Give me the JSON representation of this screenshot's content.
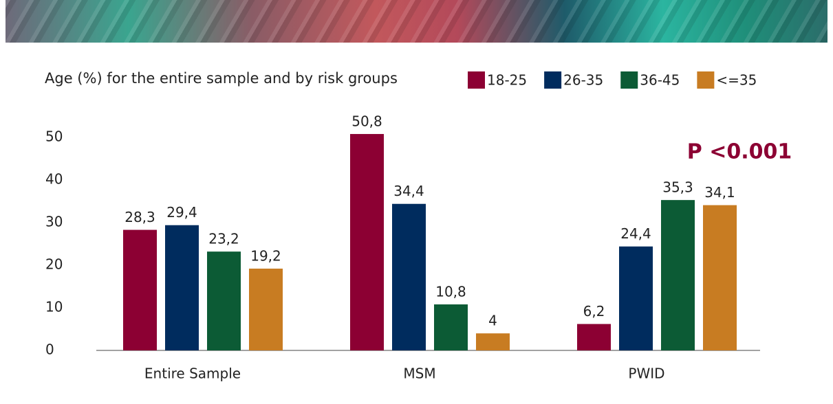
{
  "chart_data": {
    "type": "bar",
    "title": "Age (%) for the entire sample and by risk groups",
    "annotation": "P <0.001",
    "categories": [
      "Entire Sample",
      "MSM",
      "PWID"
    ],
    "series": [
      {
        "name": "18-25",
        "color": "#8c0033",
        "values": [
          28.3,
          50.8,
          6.2
        ],
        "value_labels": [
          "28,3",
          "50,8",
          "6,2"
        ]
      },
      {
        "name": "26-35",
        "color": "#002c5e",
        "values": [
          29.4,
          34.4,
          24.4
        ],
        "value_labels": [
          "29,4",
          "34,4",
          "24,4"
        ]
      },
      {
        "name": "36-45",
        "color": "#0c5b35",
        "values": [
          23.2,
          10.8,
          35.3
        ],
        "value_labels": [
          "23,2",
          "10,8",
          "35,3"
        ]
      },
      {
        "name": "<=35",
        "color": "#c87c22",
        "values": [
          19.2,
          4,
          34.1
        ],
        "value_labels": [
          "19,2",
          "4",
          "34,1"
        ]
      }
    ],
    "ylim": [
      0,
      55
    ],
    "yticks": [
      0,
      10,
      20,
      30,
      40,
      50
    ]
  }
}
